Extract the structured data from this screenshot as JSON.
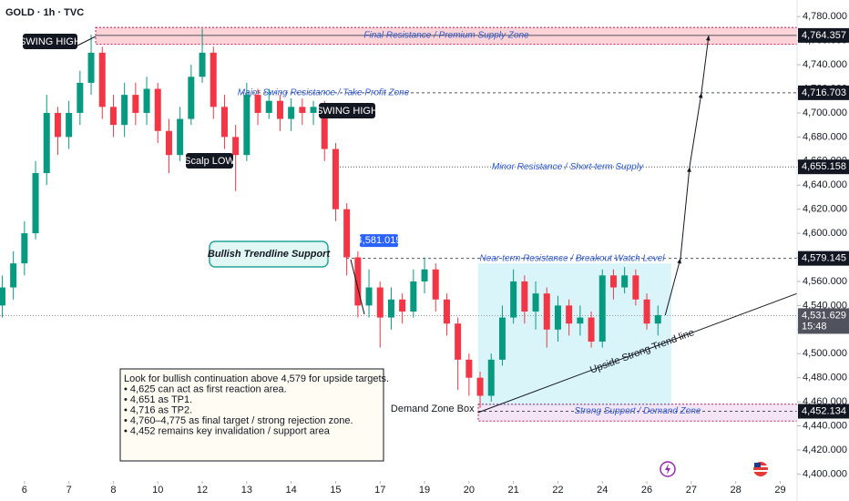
{
  "chart_data": {
    "type": "candlestick",
    "title": "GOLD · 1h · TVC",
    "x": [
      -0.5,
      -0.25,
      0,
      0.25,
      0.5,
      0.75,
      1,
      1.25,
      1.5,
      1.75,
      2,
      2.25,
      2.5,
      2.75,
      3,
      3.25,
      3.5,
      3.75,
      4,
      4.25,
      4.5,
      4.75,
      5,
      5.25,
      5.5,
      5.75,
      6,
      6.25,
      6.5,
      6.75,
      7,
      7.25,
      7.5,
      7.75,
      8,
      8.25,
      8.5,
      8.75,
      9,
      9.25,
      9.5,
      9.75,
      10,
      10.25,
      10.5,
      10.75,
      11,
      11.25,
      11.5,
      11.75,
      12,
      12.25,
      12.5,
      12.75,
      13,
      13.25,
      13.5,
      13.75,
      14,
      14.25
    ],
    "open": [
      4540,
      4555,
      4575,
      4600,
      4650,
      4700,
      4680,
      4700,
      4725,
      4750,
      4705,
      4690,
      4715,
      4700,
      4720,
      4685,
      4665,
      4695,
      4730,
      4750,
      4705,
      4680,
      4665,
      4715,
      4700,
      4710,
      4695,
      4705,
      4700,
      4705,
      4670,
      4620,
      4580,
      4540,
      4555,
      4530,
      4545,
      4535,
      4560,
      4570,
      4545,
      4525,
      4495,
      4480,
      4465,
      4495,
      4530,
      4560,
      4535,
      4550,
      4520,
      4540,
      4525,
      4530,
      4510,
      4565,
      4555,
      4565,
      4545,
      4525
    ],
    "high": [
      4565,
      4585,
      4610,
      4660,
      4715,
      4705,
      4710,
      4735,
      4765,
      4755,
      4715,
      4725,
      4725,
      4730,
      4725,
      4695,
      4705,
      4740,
      4770,
      4755,
      4715,
      4690,
      4725,
      4720,
      4720,
      4715,
      4712,
      4712,
      4710,
      4710,
      4675,
      4625,
      4585,
      4570,
      4560,
      4555,
      4550,
      4570,
      4580,
      4575,
      4550,
      4530,
      4500,
      4485,
      4500,
      4540,
      4570,
      4565,
      4560,
      4555,
      4548,
      4545,
      4540,
      4535,
      4570,
      4570,
      4572,
      4570,
      4550,
      4540
    ],
    "low": [
      4530,
      4545,
      4565,
      4595,
      4640,
      4665,
      4670,
      4690,
      4715,
      4695,
      4680,
      4680,
      4690,
      4690,
      4675,
      4650,
      4660,
      4690,
      4725,
      4695,
      4670,
      4635,
      4660,
      4690,
      4695,
      4685,
      4685,
      4690,
      4690,
      4660,
      4610,
      4565,
      4530,
      4530,
      4505,
      4520,
      4525,
      4530,
      4550,
      4535,
      4515,
      4470,
      4465,
      4455,
      4460,
      4490,
      4525,
      4525,
      4520,
      4505,
      4510,
      4515,
      4515,
      4505,
      4505,
      4545,
      4550,
      4540,
      4520,
      4515
    ],
    "close": [
      4555,
      4575,
      4600,
      4650,
      4700,
      4680,
      4700,
      4725,
      4750,
      4705,
      4690,
      4715,
      4700,
      4720,
      4685,
      4665,
      4695,
      4730,
      4750,
      4705,
      4680,
      4665,
      4715,
      4700,
      4710,
      4695,
      4705,
      4700,
      4705,
      4670,
      4620,
      4580,
      4540,
      4555,
      4530,
      4545,
      4535,
      4560,
      4570,
      4545,
      4525,
      4495,
      4480,
      4465,
      4495,
      4530,
      4560,
      4535,
      4550,
      4520,
      4540,
      4525,
      4530,
      4510,
      4565,
      4555,
      4565,
      4545,
      4525,
      4532
    ],
    "up_color": "#089981",
    "down_color": "#f23645",
    "xlim": [
      -0.55,
      17.38
    ],
    "xticks": [
      {
        "value": 0,
        "label": "6"
      },
      {
        "value": 1,
        "label": "7"
      },
      {
        "value": 2,
        "label": "8"
      },
      {
        "value": 3,
        "label": "10"
      },
      {
        "value": 4,
        "label": "12"
      },
      {
        "value": 5,
        "label": "13"
      },
      {
        "value": 6,
        "label": "14"
      },
      {
        "value": 7,
        "label": "15"
      },
      {
        "value": 8,
        "label": "17"
      },
      {
        "value": 9,
        "label": "19"
      },
      {
        "value": 10,
        "label": "20"
      },
      {
        "value": 11,
        "label": "21"
      },
      {
        "value": 12,
        "label": "22"
      },
      {
        "value": 13,
        "label": "24"
      },
      {
        "value": 14,
        "label": "26"
      },
      {
        "value": 15,
        "label": "27"
      },
      {
        "value": 16,
        "label": "28"
      },
      {
        "value": 17,
        "label": "29"
      }
    ],
    "ylim": [
      4395,
      4790
    ],
    "yticks": [
      {
        "value": 4400,
        "label": "4,400.000"
      },
      {
        "value": 4420,
        "label": "4,420.000"
      },
      {
        "value": 4440,
        "label": "4,440.000"
      },
      {
        "value": 4460,
        "label": "4,460.000"
      },
      {
        "value": 4480,
        "label": "4,480.000"
      },
      {
        "value": 4500,
        "label": "4,500.000"
      },
      {
        "value": 4520,
        "label": "4,520.000"
      },
      {
        "value": 4540,
        "label": "4,540.000"
      },
      {
        "value": 4560,
        "label": "4,560.000"
      },
      {
        "value": 4580,
        "label": "4,580.000"
      },
      {
        "value": 4600,
        "label": "4,600.000"
      },
      {
        "value": 4620,
        "label": "4,620.000"
      },
      {
        "value": 4640,
        "label": "4,640.000"
      },
      {
        "value": 4660,
        "label": "4,660.000"
      },
      {
        "value": 4680,
        "label": "4,680.000"
      },
      {
        "value": 4700,
        "label": "4,700.000"
      },
      {
        "value": 4720,
        "label": "4,720.000"
      },
      {
        "value": 4740,
        "label": "4,740.000"
      },
      {
        "value": 4760,
        "label": "4,760.000"
      },
      {
        "value": 4780,
        "label": "4,780.000"
      }
    ],
    "levels": [
      {
        "value": 4764.357,
        "label": "4,764.357",
        "text": "Final Resistance / Premium Supply Zone"
      },
      {
        "value": 4716.703,
        "label": "4,716.703",
        "text": "Major Swing Resistance / Take Profit Zone"
      },
      {
        "value": 4655.158,
        "label": "4,655.158",
        "text": "Minor Resistance / Short-term Supply"
      },
      {
        "value": 4579.145,
        "label": "4,579.145",
        "text": "Near-term Resistance / Breakout Watch Level"
      },
      {
        "value": 4452.134,
        "label": "4,452.134",
        "text": "Strong Support / Demand Zone"
      }
    ],
    "current_price": {
      "value": 4531.629,
      "label": "4,531.629",
      "time": "15:48"
    },
    "resistance_zone": [
      4757,
      4771
    ],
    "support_zone": [
      4444,
      4458
    ],
    "box": {
      "x": [
        10.2,
        14.55
      ],
      "y": [
        4457,
        4575
      ],
      "text": "Demand Zone Box"
    },
    "trendline": {
      "x": [
        10.2,
        17.38
      ],
      "y": [
        4451,
        4550
      ],
      "text": "Upside Strong Trend line"
    },
    "price_tag": {
      "value": 4581.019,
      "label": "4,581.019"
    },
    "annotations": [
      "SWING HIGH",
      "SWING HIGH",
      "Scalp LOW",
      "Bullish Trendline Support"
    ],
    "note": [
      "Look for bullish continuation above 4,579 for upside targets.",
      "• 4,625 can act as first reaction area.",
      "• 4,651 as TP1.",
      "• 4,716 as TP2.",
      "• 4,760–4,775 as final target / strong rejection zone.",
      "• 4,452 remains key invalidation / support area"
    ]
  }
}
